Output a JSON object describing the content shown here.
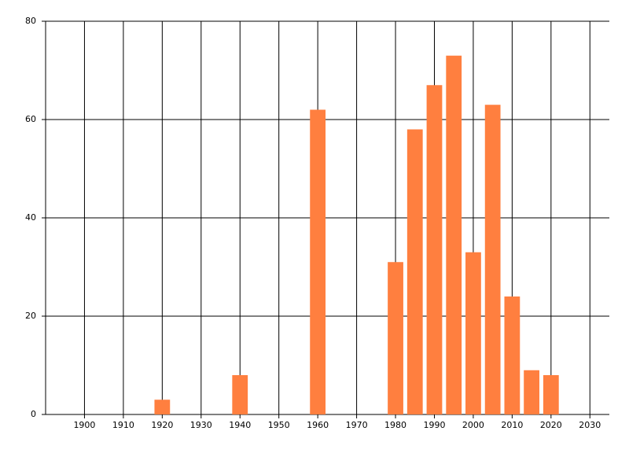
{
  "chart_data": {
    "type": "bar",
    "x": [
      1920,
      1940,
      1960,
      1980,
      1985,
      1990,
      1995,
      2000,
      2005,
      2010,
      2015,
      2020
    ],
    "values": [
      3,
      8,
      62,
      31,
      58,
      67,
      73,
      33,
      63,
      24,
      9,
      8
    ],
    "color": "#ff7f3f",
    "xlim": [
      1890,
      2035
    ],
    "xticks": [
      1900,
      1910,
      1920,
      1930,
      1940,
      1950,
      1960,
      1970,
      1980,
      1990,
      2000,
      2010,
      2020,
      2030
    ],
    "ylim": [
      0,
      80
    ],
    "yticks": [
      0,
      20,
      40,
      60,
      80
    ],
    "grid": true
  }
}
